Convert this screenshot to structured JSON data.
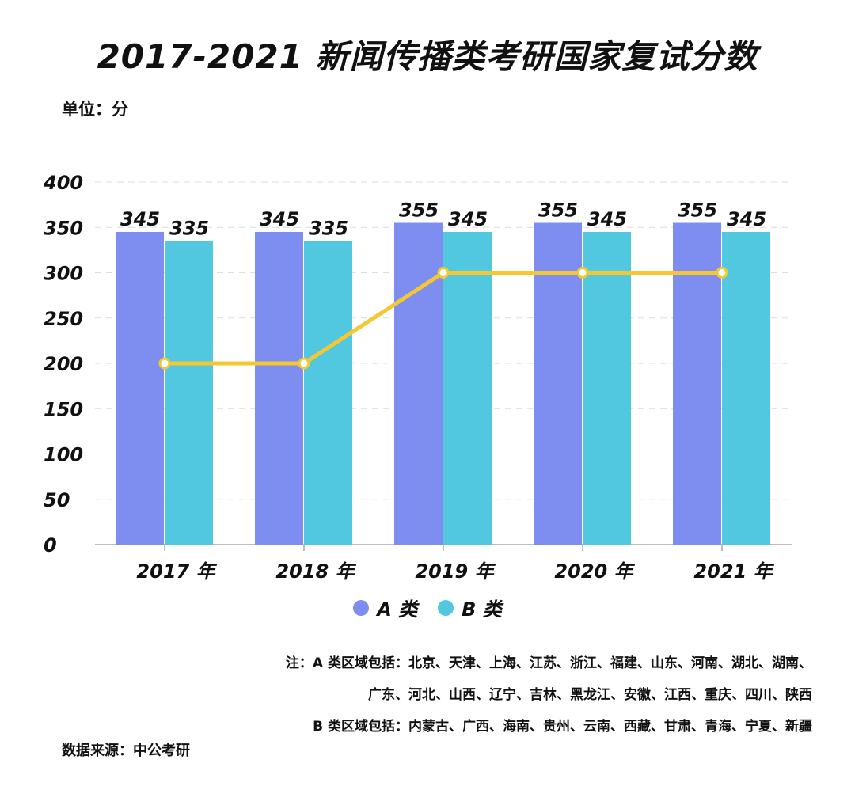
{
  "title": "2017-2021 新闻传播类考研国家复试分数",
  "unit_label": "单位：分",
  "chart_data": {
    "type": "bar",
    "categories": [
      "2017 年",
      "2018 年",
      "2019 年",
      "2020 年",
      "2021 年"
    ],
    "series": [
      {
        "name": "A 类",
        "values": [
          345,
          345,
          355,
          355,
          355
        ],
        "color": "#7e8ef0"
      },
      {
        "name": "B 类",
        "values": [
          335,
          335,
          345,
          345,
          345
        ],
        "color": "#52c8e0"
      }
    ],
    "line": {
      "values": [
        200,
        200,
        300,
        300,
        300
      ],
      "color": "#f5c832"
    },
    "ylim": [
      0,
      400
    ],
    "yticks": [
      0,
      50,
      100,
      150,
      200,
      250,
      300,
      350,
      400
    ],
    "grid": true,
    "legend": "bottom"
  },
  "notes": [
    "注：A 类区域包括：北京、天津、上海、江苏、浙江、福建、山东、河南、湖北、湖南、",
    "广东、河北、山西、辽宁、吉林、黑龙江、安徽、江西、重庆、四川、陕西",
    "B 类区域包括：内蒙古、广西、海南、贵州、云南、西藏、甘肃、青海、宁夏、新疆"
  ],
  "source": "数据来源：中公考研"
}
